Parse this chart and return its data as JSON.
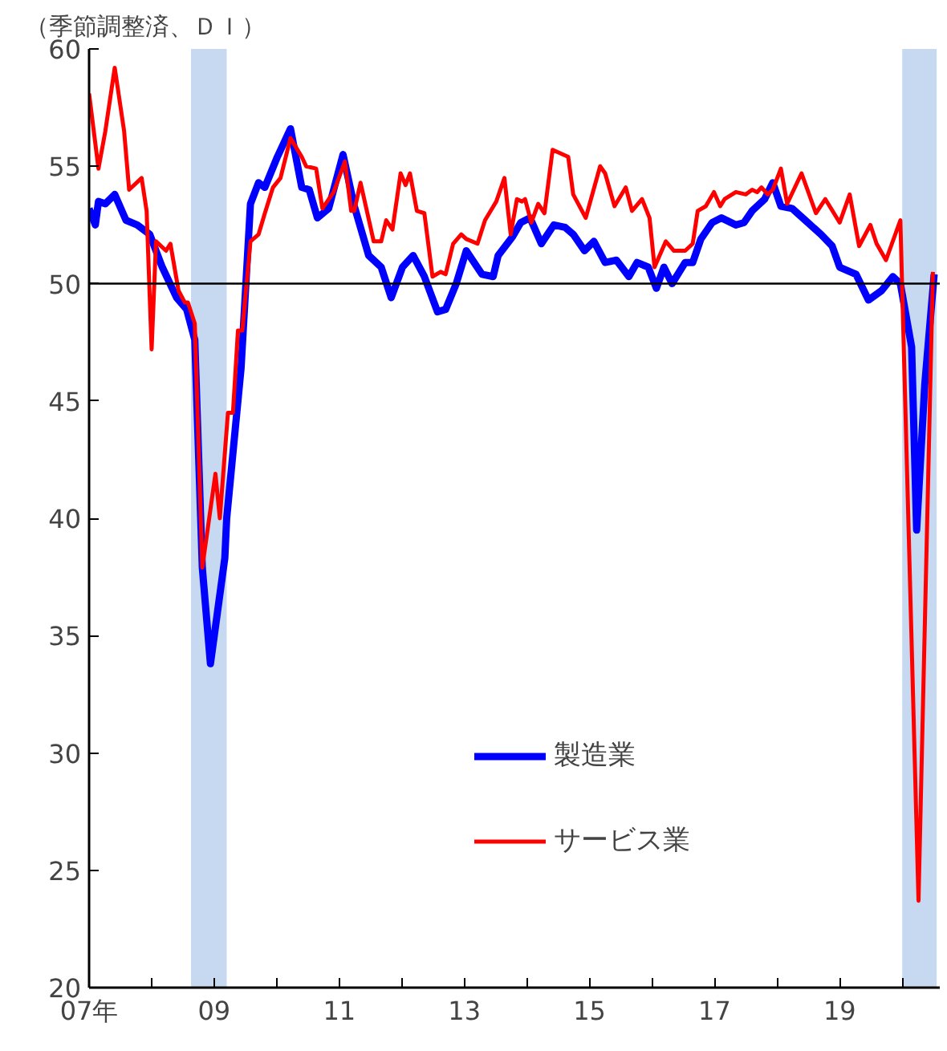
{
  "chart_data": {
    "type": "line",
    "title": "（季節調整済、ＤＩ）",
    "xlim": [
      7,
      20.6
    ],
    "ylim": [
      20,
      60
    ],
    "xticks": [
      {
        "value": 7,
        "label": "07年"
      },
      {
        "value": 8,
        "label": null
      },
      {
        "value": 9,
        "label": "09"
      },
      {
        "value": 10,
        "label": null
      },
      {
        "value": 11,
        "label": "11"
      },
      {
        "value": 12,
        "label": null
      },
      {
        "value": 13,
        "label": "13"
      },
      {
        "value": 14,
        "label": null
      },
      {
        "value": 15,
        "label": "15"
      },
      {
        "value": 16,
        "label": null
      },
      {
        "value": 17,
        "label": "17"
      },
      {
        "value": 18,
        "label": null
      },
      {
        "value": 19,
        "label": "19"
      },
      {
        "value": 20,
        "label": null
      }
    ],
    "yticks": [
      20,
      25,
      30,
      35,
      40,
      45,
      50,
      55,
      60
    ],
    "grid": false,
    "legend": "bottom",
    "marker": "none",
    "line_style": "solid",
    "ref_lines": [
      {
        "axis": "y",
        "value": 50,
        "color": "#000000"
      }
    ],
    "bands": [
      {
        "axis": "x",
        "from": 8.63,
        "to": 9.2,
        "color": "#c6d9f0"
      },
      {
        "axis": "x",
        "from": 20.0,
        "to": 20.55,
        "color": "#c6d9f0"
      }
    ],
    "series": [
      {
        "name": "製造業",
        "color": "#0000ff",
        "x": [
          7.0,
          7.1,
          7.15,
          7.26,
          7.41,
          7.59,
          7.77,
          7.97,
          8.17,
          8.4,
          8.56,
          8.69,
          8.81,
          8.94,
          9.17,
          9.2,
          9.43,
          9.58,
          9.71,
          9.81,
          10.01,
          10.22,
          10.4,
          10.52,
          10.65,
          10.83,
          11.06,
          11.24,
          11.47,
          11.67,
          11.83,
          12.01,
          12.18,
          12.36,
          12.57,
          12.7,
          12.87,
          13.03,
          13.13,
          13.28,
          13.46,
          13.54,
          13.77,
          13.9,
          14.05,
          14.23,
          14.43,
          14.61,
          14.74,
          14.92,
          15.07,
          15.25,
          15.43,
          15.63,
          15.76,
          15.94,
          16.07,
          16.19,
          16.32,
          16.53,
          16.65,
          16.78,
          16.96,
          17.11,
          17.34,
          17.47,
          17.6,
          17.8,
          17.93,
          18.06,
          18.24,
          18.49,
          18.7,
          18.88,
          19.0,
          19.26,
          19.46,
          19.67,
          19.85,
          19.97,
          20.15,
          20.23,
          20.36,
          20.51
        ],
        "values": [
          53.2,
          52.5,
          53.5,
          53.4,
          53.8,
          52.7,
          52.5,
          52.1,
          50.7,
          49.4,
          48.9,
          47.6,
          37.9,
          33.8,
          38.3,
          40.0,
          46.4,
          53.4,
          54.3,
          54.1,
          55.4,
          56.6,
          54.1,
          54.0,
          52.8,
          53.2,
          55.5,
          53.3,
          51.2,
          50.7,
          49.4,
          50.7,
          51.2,
          50.3,
          48.8,
          48.9,
          50.0,
          51.4,
          51.0,
          50.4,
          50.3,
          51.2,
          52.0,
          52.6,
          52.8,
          51.7,
          52.5,
          52.4,
          52.1,
          51.4,
          51.8,
          50.9,
          51.0,
          50.3,
          50.9,
          50.7,
          49.8,
          50.7,
          50.0,
          50.9,
          50.9,
          51.9,
          52.6,
          52.8,
          52.5,
          52.6,
          53.1,
          53.6,
          54.3,
          53.3,
          53.2,
          52.6,
          52.1,
          51.6,
          50.7,
          50.4,
          49.3,
          49.7,
          50.3,
          50.0,
          47.3,
          39.5,
          45.7,
          50.4
        ]
      },
      {
        "name": "サービス業",
        "color": "#ff0000",
        "x": [
          7.0,
          7.15,
          7.26,
          7.41,
          7.56,
          7.64,
          7.84,
          7.92,
          8.0,
          8.07,
          8.23,
          8.3,
          8.43,
          8.53,
          8.58,
          8.69,
          8.81,
          9.02,
          9.09,
          9.22,
          9.3,
          9.38,
          9.45,
          9.58,
          9.71,
          9.81,
          9.94,
          10.06,
          10.22,
          10.4,
          10.47,
          10.63,
          10.73,
          10.91,
          11.09,
          11.19,
          11.24,
          11.34,
          11.55,
          11.67,
          11.75,
          11.85,
          11.98,
          12.06,
          12.13,
          12.24,
          12.36,
          12.49,
          12.62,
          12.7,
          12.82,
          12.95,
          13.03,
          13.21,
          13.33,
          13.51,
          13.64,
          13.74,
          13.84,
          13.92,
          13.97,
          14.07,
          14.18,
          14.28,
          14.41,
          14.66,
          14.74,
          14.94,
          15.17,
          15.25,
          15.4,
          15.58,
          15.68,
          15.84,
          15.96,
          16.04,
          16.22,
          16.35,
          16.53,
          16.65,
          16.73,
          16.86,
          16.99,
          17.09,
          17.16,
          17.34,
          17.5,
          17.6,
          17.68,
          17.75,
          17.85,
          17.93,
          18.06,
          18.16,
          18.39,
          18.62,
          18.77,
          19.0,
          19.16,
          19.31,
          19.49,
          19.59,
          19.74,
          19.97,
          20.26,
          20.49
        ],
        "values": [
          58.1,
          54.9,
          56.5,
          59.2,
          56.5,
          54.0,
          54.5,
          53.1,
          47.2,
          51.8,
          51.4,
          51.7,
          49.7,
          49.2,
          49.2,
          48.3,
          37.9,
          41.9,
          40.0,
          44.5,
          44.5,
          48.0,
          48.0,
          51.8,
          52.1,
          53.0,
          54.1,
          54.5,
          56.2,
          55.4,
          55.0,
          54.9,
          53.2,
          53.9,
          55.2,
          53.1,
          53.1,
          54.3,
          51.8,
          51.8,
          52.7,
          52.3,
          54.7,
          54.2,
          54.7,
          53.1,
          53.0,
          50.3,
          50.5,
          50.4,
          51.7,
          52.1,
          51.9,
          51.7,
          52.7,
          53.5,
          54.5,
          52.1,
          53.6,
          53.5,
          53.6,
          52.6,
          53.4,
          53.0,
          55.7,
          55.4,
          53.8,
          52.8,
          55.0,
          54.7,
          53.3,
          54.1,
          53.1,
          53.6,
          52.8,
          50.7,
          51.8,
          51.4,
          51.4,
          51.7,
          53.1,
          53.3,
          53.9,
          53.3,
          53.6,
          53.9,
          53.8,
          54.0,
          53.9,
          54.1,
          53.8,
          54.0,
          54.9,
          53.4,
          54.7,
          53.0,
          53.6,
          52.6,
          53.8,
          51.6,
          52.5,
          51.7,
          51.0,
          52.7,
          23.7,
          50.5
        ]
      }
    ]
  }
}
